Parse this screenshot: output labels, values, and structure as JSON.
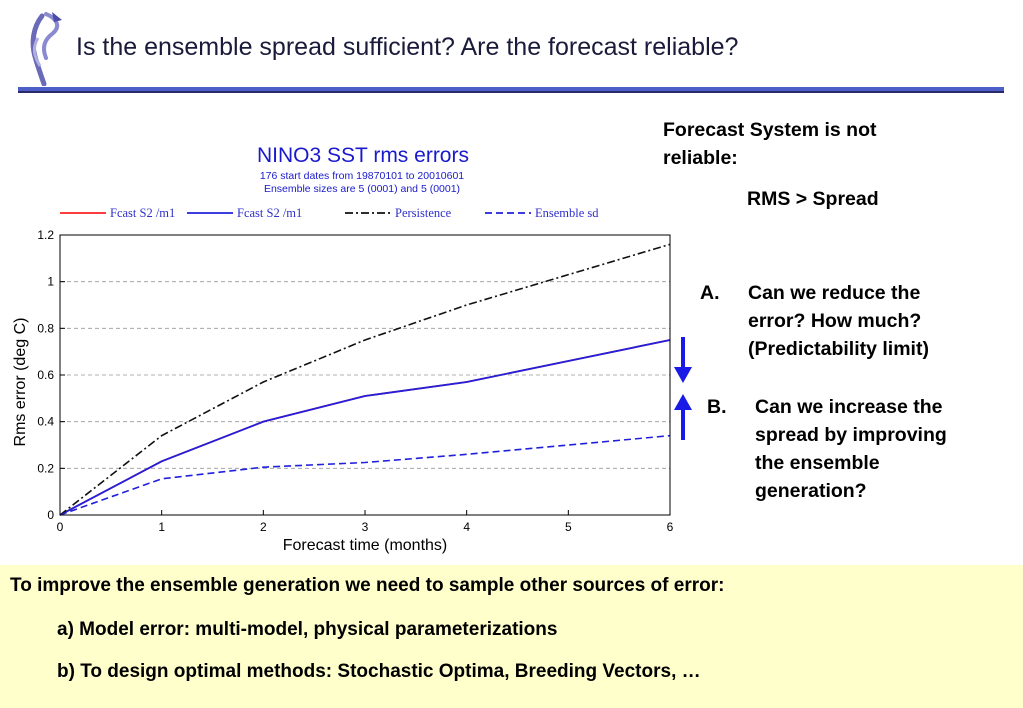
{
  "slide": {
    "title": "Is the ensemble  spread sufficient? Are the forecast reliable?"
  },
  "right_panel": {
    "heading_line1": "Forecast System is not",
    "heading_line2": "reliable:",
    "rms_spread": "RMS > Spread",
    "item_a": {
      "marker": "A.",
      "line1": "Can we reduce the",
      "line2": "error? How much?",
      "line3": "(Predictability limit)"
    },
    "item_b": {
      "marker": "B.",
      "line1": "Can we increase the",
      "line2": "spread by improving",
      "line3": "the ensemble",
      "line4": "generation?"
    },
    "arrow_color": "#1a1ae6"
  },
  "footer": {
    "line1": "To improve the ensemble generation we need to sample other sources of error:",
    "line2": "a) Model error: multi-model, physical parameterizations",
    "line3": "b) To design optimal methods: Stochastic Optima, Breeding Vectors, …",
    "background": "#ffffcc"
  },
  "chart_data": {
    "type": "line",
    "title": "NINO3 SST rms errors",
    "subtitle_line1": "176 start dates from 19870101  to 20010601",
    "subtitle_line2": "Ensemble sizes are  5 (0001)  and  5 (0001)",
    "xlabel": "Forecast time (months)",
    "ylabel": "Rms error (deg C)",
    "xlim": [
      0,
      6
    ],
    "ylim": [
      0,
      1.2
    ],
    "xticks": [
      "0",
      "1",
      "2",
      "3",
      "4",
      "5",
      "6"
    ],
    "yticks": [
      "0",
      "0.2",
      "0.4",
      "0.6",
      "0.8",
      "1",
      "1.2"
    ],
    "grid": true,
    "legend_position": "top",
    "x": [
      0,
      1,
      2,
      3,
      4,
      5,
      6
    ],
    "series": [
      {
        "name": "Fcast S2  /m1",
        "color": "#ff2020",
        "style": "solid",
        "values": [
          0,
          0.23,
          0.4,
          0.51,
          0.57,
          0.66,
          0.75
        ]
      },
      {
        "name": "Fcast S2  /m1",
        "color": "#2020dd",
        "style": "solid",
        "values": [
          0,
          0.23,
          0.4,
          0.51,
          0.57,
          0.66,
          0.75
        ]
      },
      {
        "name": "Persistence",
        "color": "#111111",
        "style": "dashdot",
        "values": [
          0,
          0.34,
          0.57,
          0.75,
          0.9,
          1.03,
          1.16
        ]
      },
      {
        "name": "Ensemble sd",
        "color": "#2020dd",
        "style": "dashed",
        "values": [
          0,
          0.155,
          0.205,
          0.225,
          0.26,
          0.3,
          0.34
        ]
      }
    ],
    "colors": {
      "title": "#1a1acc",
      "subtitle": "#1a1acc",
      "legend_text": "#3030cc",
      "grid": "#999999"
    }
  }
}
